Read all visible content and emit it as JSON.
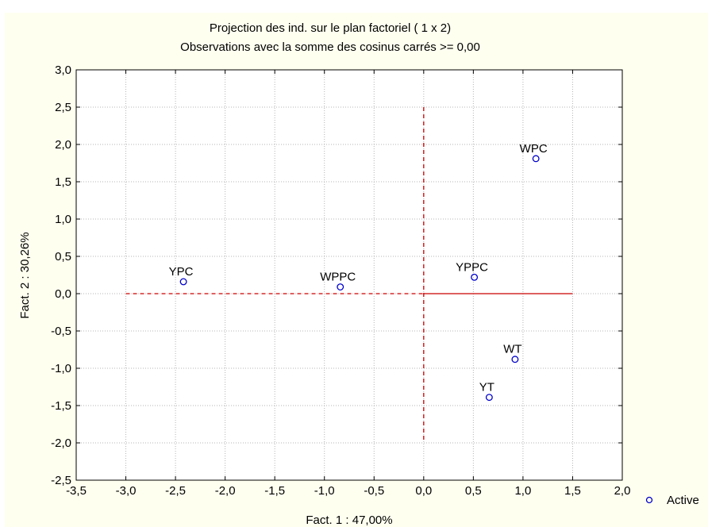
{
  "chart_data": {
    "type": "scatter",
    "title": "Projection des ind. sur le plan factoriel (  1 x   2)",
    "subtitle": "Observations avec la somme des cosinus carrés >=  0,00",
    "xlabel": "Fact. 1 : 47,00%",
    "ylabel": "Fact. 2 : 30,26%",
    "xlim": [
      -3.5,
      2.0
    ],
    "ylim": [
      -2.5,
      3.0
    ],
    "xticks": [
      "-3,5",
      "-3,0",
      "-2,5",
      "-2,0",
      "-1,5",
      "-1,0",
      "-0,5",
      "0,0",
      "0,5",
      "1,0",
      "1,5",
      "2,0"
    ],
    "yticks": [
      "3,0",
      "2,5",
      "2,0",
      "1,5",
      "1,0",
      "0,5",
      "0,0",
      "-0,5",
      "-1,0",
      "-1,5",
      "-2,0",
      "-2,5"
    ],
    "grid": true,
    "legend_position": "bottom-right",
    "series": [
      {
        "name": "Active",
        "color": "#0000cc",
        "points": [
          {
            "label": "WPC",
            "x": 1.13,
            "y": 1.81
          },
          {
            "label": "YPC",
            "x": -2.42,
            "y": 0.16
          },
          {
            "label": "WPPC",
            "x": -0.84,
            "y": 0.09
          },
          {
            "label": "YPPC",
            "x": 0.51,
            "y": 0.22
          },
          {
            "label": "WT",
            "x": 0.92,
            "y": -0.88
          },
          {
            "label": "YT",
            "x": 0.66,
            "y": -1.39
          }
        ]
      }
    ],
    "reference_lines": {
      "color": "#cc0000",
      "horizontal": {
        "y": 0.0,
        "dashed_from": -3.0,
        "dashed_to": 0.0,
        "solid_from": 0.0,
        "solid_to": 1.5
      },
      "vertical": {
        "x": 0.0,
        "from": -2.0,
        "to": 2.5,
        "dashed": true
      }
    }
  }
}
